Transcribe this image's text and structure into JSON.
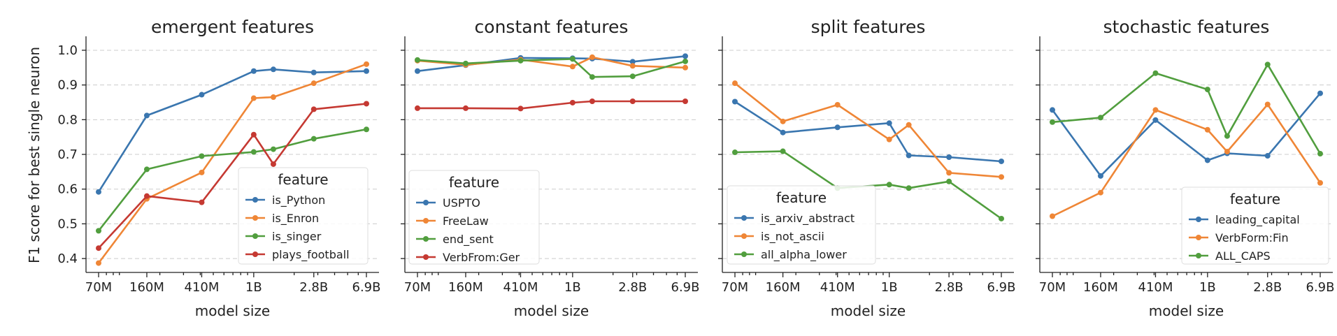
{
  "figure": {
    "ylabel": "F1 score for best single neuron"
  },
  "chart_data": [
    {
      "type": "line",
      "title": "emergent features",
      "xlabel": "model size",
      "ylabel": "F1 score for best single neuron",
      "x_tick_labels": [
        "70M",
        "160M",
        "410M",
        "1B",
        "2.8B",
        "6.9B"
      ],
      "x_values": [
        70,
        160,
        410,
        1000,
        1400,
        2800,
        6900
      ],
      "xscale": "log",
      "ylim": [
        0.36,
        1.02
      ],
      "y_ticks": [
        "0.4",
        "0.5",
        "0.6",
        "0.7",
        "0.8",
        "0.9",
        "1.0"
      ],
      "grid": "horizontal dashed",
      "legend": {
        "title": "feature",
        "placement": "lower-right"
      },
      "series": [
        {
          "name": "is_Python",
          "color": "#3a76af",
          "values": [
            0.592,
            0.812,
            0.872,
            0.94,
            0.945,
            0.936,
            0.94
          ]
        },
        {
          "name": "is_Enron",
          "color": "#ef8636",
          "values": [
            0.387,
            0.572,
            0.648,
            0.862,
            0.865,
            0.905,
            0.96
          ]
        },
        {
          "name": "is_singer",
          "color": "#519e3e",
          "values": [
            0.48,
            0.657,
            0.695,
            0.707,
            0.715,
            0.745,
            0.772
          ]
        },
        {
          "name": "plays_football",
          "color": "#c53932",
          "values": [
            0.43,
            0.58,
            0.562,
            0.757,
            0.672,
            0.83,
            0.846
          ]
        }
      ]
    },
    {
      "type": "line",
      "title": "constant features",
      "xlabel": "model size",
      "x_tick_labels": [
        "70M",
        "160M",
        "410M",
        "1B",
        "2.8B",
        "6.9B"
      ],
      "x_values": [
        70,
        160,
        410,
        1000,
        1400,
        2800,
        6900
      ],
      "xscale": "log",
      "ylim": [
        0.36,
        1.02
      ],
      "grid": "horizontal dashed",
      "legend": {
        "title": "feature",
        "placement": "lower-left"
      },
      "series": [
        {
          "name": "USPTO",
          "color": "#3a76af",
          "values": [
            0.94,
            0.957,
            0.978,
            0.977,
            0.976,
            0.967,
            0.983
          ]
        },
        {
          "name": "FreeLaw",
          "color": "#ef8636",
          "values": [
            0.97,
            0.958,
            0.973,
            0.953,
            0.98,
            0.955,
            0.95
          ]
        },
        {
          "name": "end_sent",
          "color": "#519e3e",
          "values": [
            0.972,
            0.962,
            0.97,
            0.975,
            0.923,
            0.925,
            0.968
          ]
        },
        {
          "name": "VerbFrom:Ger",
          "color": "#c53932",
          "values": [
            0.833,
            0.833,
            0.832,
            0.849,
            0.853,
            0.853,
            0.853
          ]
        }
      ]
    },
    {
      "type": "line",
      "title": "split features",
      "xlabel": "model size",
      "x_tick_labels": [
        "70M",
        "160M",
        "410M",
        "1B",
        "2.8B",
        "6.9B"
      ],
      "x_values": [
        70,
        160,
        410,
        1000,
        1400,
        2800,
        6900
      ],
      "xscale": "log",
      "ylim": [
        0.36,
        1.02
      ],
      "grid": "horizontal dashed",
      "legend": {
        "title": "feature",
        "placement": "lower-left"
      },
      "series": [
        {
          "name": "is_arxiv_abstract",
          "color": "#3a76af",
          "values": [
            0.852,
            0.763,
            0.778,
            0.79,
            0.697,
            0.692,
            0.68
          ]
        },
        {
          "name": "is_not_ascii",
          "color": "#ef8636",
          "values": [
            0.905,
            0.795,
            0.843,
            0.743,
            0.785,
            0.647,
            0.635
          ]
        },
        {
          "name": "all_alpha_lower",
          "color": "#519e3e",
          "values": [
            0.706,
            0.709,
            0.603,
            0.613,
            0.603,
            0.622,
            0.515
          ]
        }
      ]
    },
    {
      "type": "line",
      "title": "stochastic features",
      "xlabel": "model size",
      "x_tick_labels": [
        "70M",
        "160M",
        "410M",
        "1B",
        "2.8B",
        "6.9B"
      ],
      "x_values": [
        70,
        160,
        410,
        1000,
        1400,
        2800,
        6900
      ],
      "xscale": "log",
      "ylim": [
        0.36,
        1.02
      ],
      "grid": "horizontal dashed",
      "legend": {
        "title": "feature",
        "placement": "lower-right"
      },
      "series": [
        {
          "name": "leading_capital",
          "color": "#3a76af",
          "values": [
            0.828,
            0.638,
            0.799,
            0.683,
            0.703,
            0.696,
            0.876
          ]
        },
        {
          "name": "VerbForm:Fin",
          "color": "#ef8636",
          "values": [
            0.522,
            0.59,
            0.828,
            0.771,
            0.708,
            0.844,
            0.618
          ]
        },
        {
          "name": "ALL_CAPS",
          "color": "#519e3e",
          "values": [
            0.793,
            0.806,
            0.934,
            0.887,
            0.753,
            0.959,
            0.702
          ]
        }
      ]
    }
  ]
}
